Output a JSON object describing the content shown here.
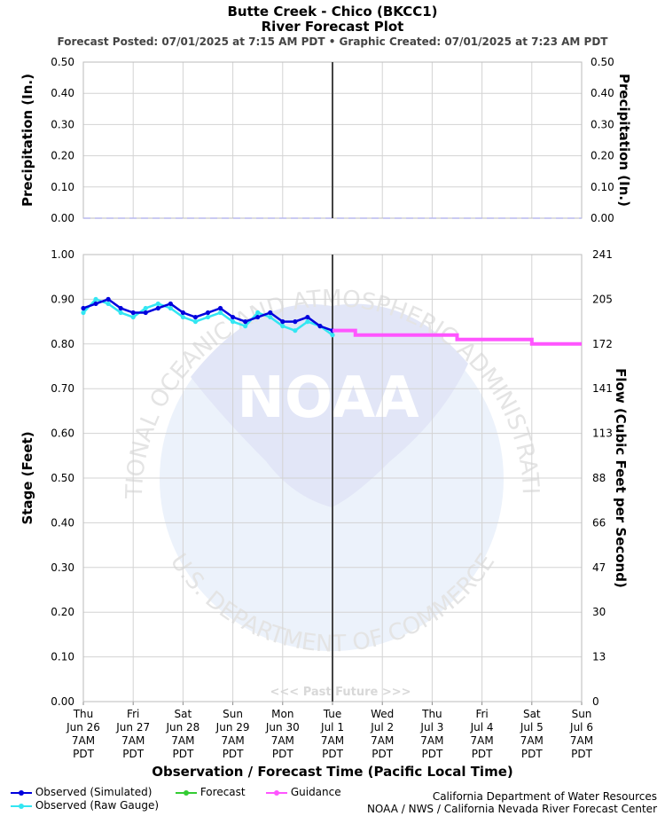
{
  "header": {
    "title": "Butte Creek - Chico (BKCC1)",
    "subtitle": "River Forecast Plot",
    "posted": "Forecast Posted: 07/01/2025 at 7:15 AM PDT  •  Graphic Created: 07/01/2025 at 7:23 AM PDT"
  },
  "colors": {
    "observed_simulated": "#0000dd",
    "observed_raw": "#33e6f2",
    "forecast": "#33cc33",
    "guidance": "#ff55ff",
    "grid": "#d3d3d3",
    "now_line": "#444444",
    "watermark": "#e6ecfa"
  },
  "watermark": {
    "logo_text": "NOAA",
    "ring_top": "NATIONAL OCEANIC AND ATMOSPHERIC ADMINISTRATION",
    "ring_bottom": "U.S. DEPARTMENT OF COMMERCE",
    "past_future": "<<< Past   Future >>>"
  },
  "chart_data": [
    {
      "type": "line",
      "ylabel": "Precipitation (In.)",
      "ylabel_right": "Precipitation (In.)",
      "ylim": [
        0,
        0.5
      ],
      "yticks": [
        "0.00",
        "0.10",
        "0.20",
        "0.30",
        "0.40",
        "0.50"
      ],
      "series": [
        {
          "x": [
            "Jun 26 7AM",
            "Jul 6 7AM"
          ],
          "values": [
            0,
            0
          ]
        }
      ]
    },
    {
      "type": "line",
      "xlabel": "Observation / Forecast Time (Pacific Local Time)",
      "ylabel": "Stage (Feet)",
      "ylabel_right": "Flow (Cubic Feet per Second)",
      "ylim": [
        0,
        1.0
      ],
      "yticks": [
        "0.00",
        "0.10",
        "0.20",
        "0.30",
        "0.40",
        "0.50",
        "0.60",
        "0.70",
        "0.80",
        "0.90",
        "1.00"
      ],
      "yticks_right": [
        "0",
        "13",
        "30",
        "47",
        "66",
        "88",
        "113",
        "141",
        "172",
        "205",
        "241"
      ],
      "xticks": [
        {
          "day": "Thu",
          "date": "Jun 26",
          "time": "7AM",
          "tz": "PDT"
        },
        {
          "day": "Fri",
          "date": "Jun 27",
          "time": "7AM",
          "tz": "PDT"
        },
        {
          "day": "Sat",
          "date": "Jun 28",
          "time": "7AM",
          "tz": "PDT"
        },
        {
          "day": "Sun",
          "date": "Jun 29",
          "time": "7AM",
          "tz": "PDT"
        },
        {
          "day": "Mon",
          "date": "Jun 30",
          "time": "7AM",
          "tz": "PDT"
        },
        {
          "day": "Tue",
          "date": "Jul 1",
          "time": "7AM",
          "tz": "PDT"
        },
        {
          "day": "Wed",
          "date": "Jul 2",
          "time": "7AM",
          "tz": "PDT"
        },
        {
          "day": "Thu",
          "date": "Jul 3",
          "time": "7AM",
          "tz": "PDT"
        },
        {
          "day": "Fri",
          "date": "Jul 4",
          "time": "7AM",
          "tz": "PDT"
        },
        {
          "day": "Sat",
          "date": "Jul 5",
          "time": "7AM",
          "tz": "PDT"
        },
        {
          "day": "Sun",
          "date": "Jul 6",
          "time": "7AM",
          "tz": "PDT"
        }
      ],
      "now": "Jul 1 7AM",
      "legend": "bottom-left",
      "series": [
        {
          "name": "Observed (Simulated)",
          "x": [
            "Jun 26 7AM",
            "Jun 26 1PM",
            "Jun 26 7PM",
            "Jun 27 1AM",
            "Jun 27 7AM",
            "Jun 27 1PM",
            "Jun 27 7PM",
            "Jun 28 1AM",
            "Jun 28 7AM",
            "Jun 28 1PM",
            "Jun 28 7PM",
            "Jun 29 1AM",
            "Jun 29 7AM",
            "Jun 29 1PM",
            "Jun 29 7PM",
            "Jun 30 1AM",
            "Jun 30 7AM",
            "Jun 30 1PM",
            "Jun 30 7PM",
            "Jul 1 1AM",
            "Jul 1 7AM"
          ],
          "values": [
            0.88,
            0.89,
            0.9,
            0.88,
            0.87,
            0.87,
            0.88,
            0.89,
            0.87,
            0.86,
            0.87,
            0.88,
            0.86,
            0.85,
            0.86,
            0.87,
            0.85,
            0.85,
            0.86,
            0.84,
            0.83
          ]
        },
        {
          "name": "Observed (Raw Gauge)",
          "x": [
            "Jun 26 7AM",
            "Jun 26 1PM",
            "Jun 26 7PM",
            "Jun 27 1AM",
            "Jun 27 7AM",
            "Jun 27 1PM",
            "Jun 27 7PM",
            "Jun 28 1AM",
            "Jun 28 7AM",
            "Jun 28 1PM",
            "Jun 28 7PM",
            "Jun 29 1AM",
            "Jun 29 7AM",
            "Jun 29 1PM",
            "Jun 29 7PM",
            "Jun 30 1AM",
            "Jun 30 7AM",
            "Jun 30 1PM",
            "Jun 30 7PM",
            "Jul 1 1AM",
            "Jul 1 7AM"
          ],
          "values": [
            0.87,
            0.9,
            0.89,
            0.87,
            0.86,
            0.88,
            0.89,
            0.88,
            0.86,
            0.85,
            0.86,
            0.87,
            0.85,
            0.84,
            0.87,
            0.86,
            0.84,
            0.83,
            0.85,
            0.84,
            0.82
          ]
        },
        {
          "name": "Forecast",
          "x": [],
          "values": []
        },
        {
          "name": "Guidance",
          "x": [
            "Jul 1 7AM",
            "Jul 1 6PM",
            "Jul 1 6PM",
            "Jul 3 7PM",
            "Jul 3 7PM",
            "Jul 5 7AM",
            "Jul 5 7AM",
            "Jul 6 7AM"
          ],
          "values": [
            0.83,
            0.83,
            0.82,
            0.82,
            0.81,
            0.81,
            0.8,
            0.8
          ]
        }
      ]
    }
  ],
  "legend": {
    "observed_simulated": "Observed (Simulated)",
    "observed_raw": "Observed (Raw Gauge)",
    "forecast": "Forecast",
    "guidance": "Guidance"
  },
  "credits": {
    "line1": "California Department of Water Resources",
    "line2": "NOAA / NWS / California Nevada River Forecast Center"
  }
}
